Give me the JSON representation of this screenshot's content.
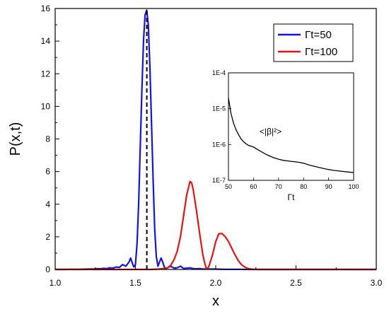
{
  "chart_data": {
    "type": "line",
    "xlabel": "x",
    "ylabel": "P(x,t)",
    "xlim": [
      1.0,
      3.0
    ],
    "ylim": [
      0,
      16
    ],
    "x_ticks": [
      1.0,
      1.5,
      2.0,
      2.5,
      3.0
    ],
    "x_tick_labels": [
      "1.0",
      "1.5",
      "2.0",
      "2.5",
      "3.0"
    ],
    "y_ticks": [
      0,
      2,
      4,
      6,
      8,
      10,
      12,
      14,
      16
    ],
    "y_tick_labels": [
      "0",
      "2",
      "4",
      "6",
      "8",
      "10",
      "12",
      "14",
      "16"
    ],
    "grid": false,
    "legend_position": "top-right",
    "reference_line": {
      "x": 1.5708,
      "style": "dashed",
      "color": "#000000"
    },
    "series": [
      {
        "name": "Γt=50",
        "color": "#1515d6",
        "x": [
          1.0,
          1.05,
          1.1,
          1.15,
          1.2,
          1.22,
          1.24,
          1.26,
          1.28,
          1.3,
          1.32,
          1.34,
          1.36,
          1.38,
          1.4,
          1.42,
          1.44,
          1.46,
          1.47,
          1.48,
          1.49,
          1.5,
          1.51,
          1.52,
          1.53,
          1.54,
          1.55,
          1.56,
          1.57,
          1.58,
          1.59,
          1.6,
          1.61,
          1.62,
          1.63,
          1.64,
          1.65,
          1.66,
          1.67,
          1.68,
          1.69,
          1.7,
          1.72,
          1.74,
          1.76,
          1.78,
          1.8,
          1.82,
          1.84,
          1.86,
          1.88,
          1.9,
          1.92,
          1.95,
          2.0,
          2.05,
          2.1,
          2.15,
          2.2,
          2.25,
          2.3,
          2.5,
          2.8,
          3.0
        ],
        "y": [
          0,
          0,
          0.01,
          0.01,
          0.02,
          0.03,
          0.02,
          0.05,
          0.04,
          0.07,
          0.05,
          0.1,
          0.08,
          0.15,
          0.12,
          0.3,
          0.2,
          0.45,
          0.7,
          0.4,
          0.15,
          0.3,
          1.6,
          4.0,
          7.5,
          11.0,
          14.0,
          15.6,
          15.9,
          15.0,
          12.5,
          9.0,
          5.5,
          2.5,
          0.8,
          0.2,
          0.45,
          0.7,
          0.45,
          0.15,
          0.05,
          0.1,
          0.2,
          0.08,
          0.1,
          0.2,
          0.06,
          0.08,
          0.1,
          0.05,
          0.04,
          0.05,
          0.02,
          0.03,
          0.02,
          0.01,
          0.01,
          0.01,
          0,
          0,
          0,
          0,
          0,
          0
        ]
      },
      {
        "name": "Γt=100",
        "color": "#e01515",
        "x": [
          1.0,
          1.5,
          1.6,
          1.64,
          1.66,
          1.68,
          1.7,
          1.72,
          1.74,
          1.76,
          1.78,
          1.8,
          1.82,
          1.84,
          1.85,
          1.86,
          1.88,
          1.9,
          1.92,
          1.93,
          1.94,
          1.95,
          1.96,
          1.98,
          2.0,
          2.02,
          2.04,
          2.06,
          2.08,
          2.1,
          2.12,
          2.14,
          2.16,
          2.18,
          2.2,
          2.22,
          2.24,
          2.26,
          2.3,
          2.5,
          2.8,
          3.0
        ],
        "y": [
          0,
          0,
          0,
          0.02,
          0.04,
          0.06,
          0.1,
          0.25,
          0.6,
          1.1,
          2.0,
          3.3,
          4.6,
          5.4,
          5.3,
          4.9,
          3.6,
          2.2,
          0.9,
          0.45,
          0.1,
          0.05,
          0.25,
          0.9,
          1.7,
          2.2,
          2.2,
          2.0,
          1.7,
          1.3,
          0.9,
          0.55,
          0.3,
          0.15,
          0.06,
          0.02,
          0.01,
          0,
          0,
          0,
          0,
          0
        ]
      }
    ],
    "inset": {
      "type": "line",
      "xlabel": "Γt",
      "ylabel": "",
      "annotation": "<|β|²>",
      "xlim": [
        50,
        100
      ],
      "ylim": [
        1e-07,
        0.0001
      ],
      "yscale": "log",
      "x_tick_labels": [
        "50",
        "60",
        "70",
        "80",
        "90",
        "100"
      ],
      "y_tick_labels": [
        "1E-7",
        "1E-6",
        "1E-5",
        "1E-4"
      ],
      "series": [
        {
          "name": "",
          "color": "#000000",
          "x": [
            50,
            51,
            52,
            53,
            54,
            55,
            56,
            57,
            58,
            60,
            62,
            65,
            68,
            70,
            72,
            75,
            78,
            80,
            82,
            85,
            88,
            90,
            92,
            95,
            98,
            100
          ],
          "y": [
            2e-05,
            7.5e-06,
            4e-06,
            2.6e-06,
            1.9e-06,
            1.45e-06,
            1.2e-06,
            1.05e-06,
            9.5e-07,
            8.5e-07,
            7e-07,
            5.3e-07,
            4.3e-07,
            3.9e-07,
            3.6e-07,
            3.4e-07,
            3.2e-07,
            3e-07,
            2.7e-07,
            2.4e-07,
            2.15e-07,
            2e-07,
            1.9e-07,
            1.8e-07,
            1.7e-07,
            1.65e-07
          ]
        }
      ]
    }
  }
}
